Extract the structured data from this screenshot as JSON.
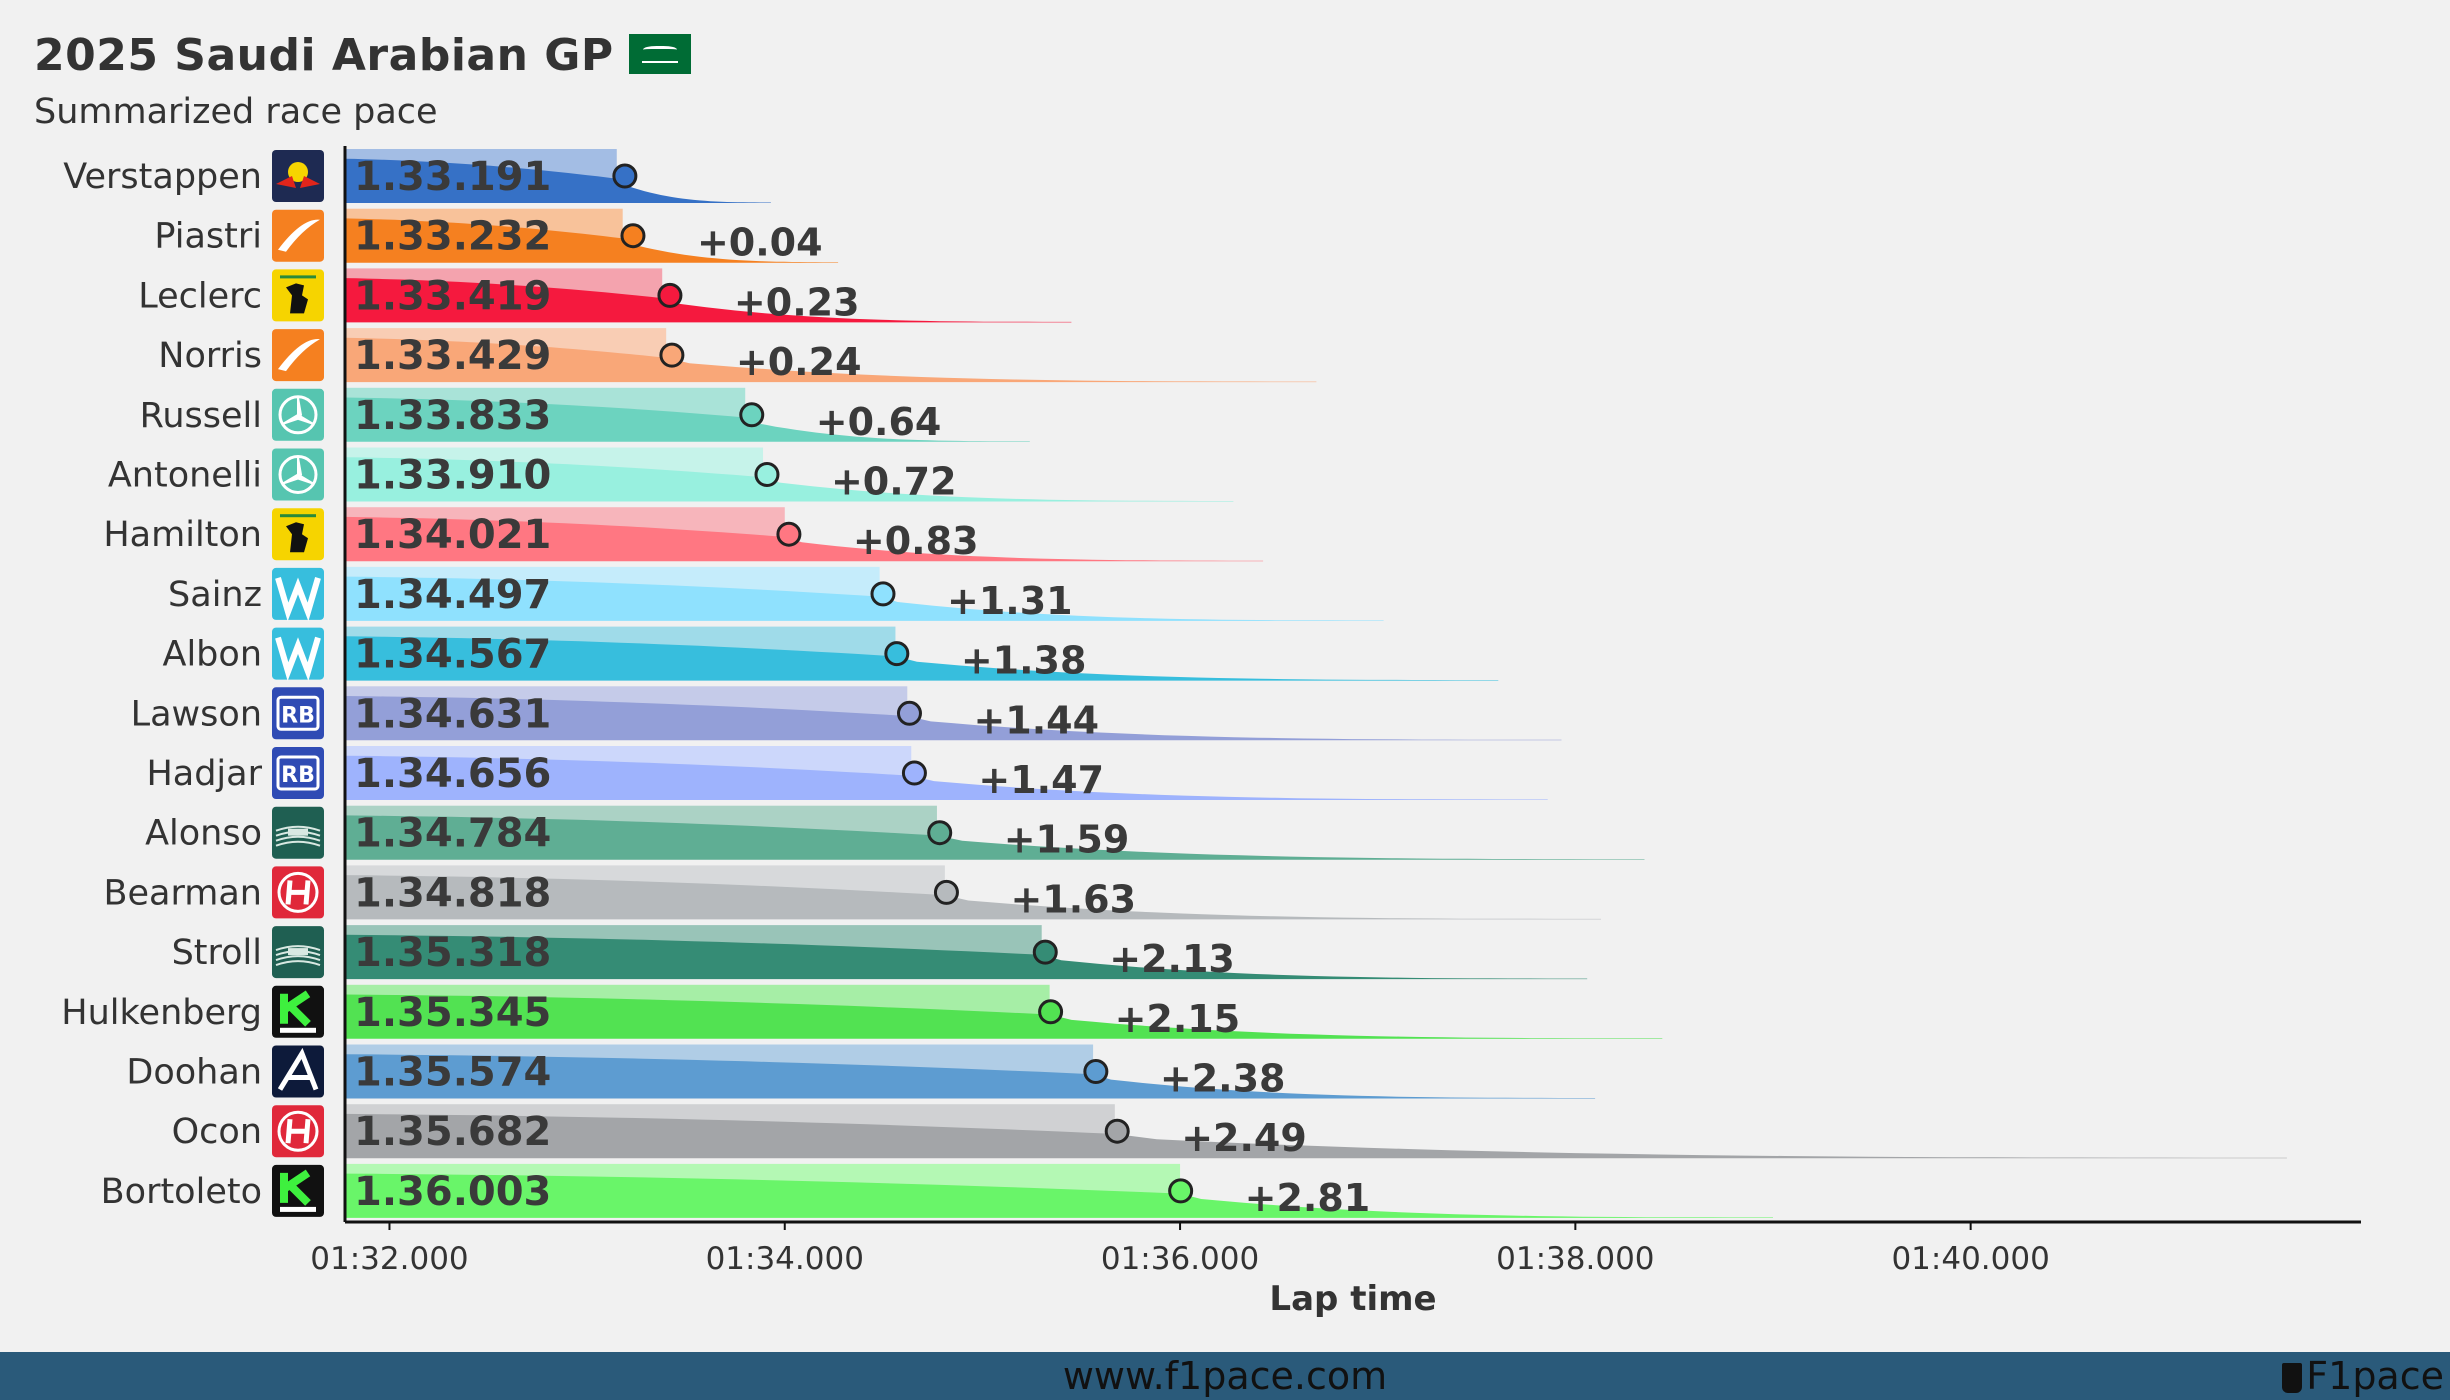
{
  "title": "2025 Saudi Arabian GP",
  "subtitle": "Summarized race pace",
  "footer": {
    "url": "www.f1pace.com",
    "brand": "F1pace"
  },
  "chart_data": {
    "type": "bar",
    "title": "2025 Saudi Arabian GP",
    "subtitle": "Summarized race pace",
    "xlabel": "Lap time",
    "ylabel": "",
    "x_unit": "seconds",
    "xlim": [
      91.775,
      101.975
    ],
    "x_ticks": [
      92,
      94,
      96,
      98,
      100
    ],
    "x_tick_labels": [
      "01:32.000",
      "01:34.000",
      "01:36.000",
      "01:38.000",
      "01:40.000"
    ],
    "grid": false,
    "legend": "none",
    "drivers": [
      {
        "name": "Verstappen",
        "team_icon": "red-bull-icon",
        "pace": 93.191,
        "pace_label": "1.33.191",
        "gap": "",
        "quartile": 93.15,
        "max": 93.93,
        "color": "#3671c6",
        "light": "#a3bde4"
      },
      {
        "name": "Piastri",
        "team_icon": "mclaren-icon",
        "pace": 93.232,
        "pace_label": "1.33.232",
        "gap": "+0.04",
        "quartile": 93.18,
        "max": 94.27,
        "color": "#f58020",
        "light": "#f8c29a"
      },
      {
        "name": "Leclerc",
        "team_icon": "ferrari-icon",
        "pace": 93.419,
        "pace_label": "1.33.419",
        "gap": "+0.23",
        "quartile": 93.38,
        "max": 95.45,
        "color": "#f5193e",
        "light": "#f4a3ae"
      },
      {
        "name": "Norris",
        "team_icon": "mclaren-icon",
        "pace": 93.429,
        "pace_label": "1.33.429",
        "gap": "+0.24",
        "quartile": 93.4,
        "max": 96.69,
        "color": "#f9a778",
        "light": "#f9cdb4"
      },
      {
        "name": "Russell",
        "team_icon": "mercedes-icon",
        "pace": 93.833,
        "pace_label": "1.33.833",
        "gap": "+0.64",
        "quartile": 93.8,
        "max": 95.24,
        "color": "#6cd3bf",
        "light": "#a9e3d8"
      },
      {
        "name": "Antonelli",
        "team_icon": "mercedes-icon",
        "pace": 93.91,
        "pace_label": "1.33.910",
        "gap": "+0.72",
        "quartile": 93.89,
        "max": 96.27,
        "color": "#98f0df",
        "light": "#c6f3ea"
      },
      {
        "name": "Hamilton",
        "team_icon": "ferrari-icon",
        "pace": 94.021,
        "pace_label": "1.34.021",
        "gap": "+0.83",
        "quartile": 94.0,
        "max": 96.42,
        "color": "#ff7782",
        "light": "#f7b5bb"
      },
      {
        "name": "Sainz",
        "team_icon": "williams-icon",
        "pace": 94.497,
        "pace_label": "1.34.497",
        "gap": "+1.31",
        "quartile": 94.48,
        "max": 97.03,
        "color": "#8fe1fe",
        "light": "#c5ecfb"
      },
      {
        "name": "Albon",
        "team_icon": "williams-icon",
        "pace": 94.567,
        "pace_label": "1.34.567",
        "gap": "+1.38",
        "quartile": 94.56,
        "max": 97.61,
        "color": "#37bedd",
        "light": "#9fdbe9"
      },
      {
        "name": "Lawson",
        "team_icon": "racing-bulls-icon",
        "pace": 94.631,
        "pace_label": "1.34.631",
        "gap": "+1.44",
        "quartile": 94.62,
        "max": 97.93,
        "color": "#939fd8",
        "light": "#c5cbe9"
      },
      {
        "name": "Hadjar",
        "team_icon": "racing-bulls-icon",
        "pace": 94.656,
        "pace_label": "1.34.656",
        "gap": "+1.47",
        "quartile": 94.64,
        "max": 97.86,
        "color": "#9eb3fd",
        "light": "#ccd7fb"
      },
      {
        "name": "Alonso",
        "team_icon": "aston-martin-icon",
        "pace": 94.784,
        "pace_label": "1.34.784",
        "gap": "+1.59",
        "quartile": 94.77,
        "max": 98.35,
        "color": "#5fae94",
        "light": "#abd2c5"
      },
      {
        "name": "Bearman",
        "team_icon": "haas-icon",
        "pace": 94.818,
        "pace_label": "1.34.818",
        "gap": "+1.63",
        "quartile": 94.81,
        "max": 98.13,
        "color": "#b6babd",
        "light": "#d7d9db"
      },
      {
        "name": "Stroll",
        "team_icon": "aston-martin-icon",
        "pace": 95.318,
        "pace_label": "1.35.318",
        "gap": "+2.13",
        "quartile": 95.3,
        "max": 98.06,
        "color": "#358c75",
        "light": "#99c4b8"
      },
      {
        "name": "Hulkenberg",
        "team_icon": "sauber-icon",
        "pace": 95.345,
        "pace_label": "1.35.345",
        "gap": "+2.15",
        "quartile": 95.34,
        "max": 98.44,
        "color": "#52e252",
        "light": "#a6eea6"
      },
      {
        "name": "Doohan",
        "team_icon": "alpine-icon",
        "pace": 95.574,
        "pace_label": "1.35.574",
        "gap": "+2.38",
        "quartile": 95.56,
        "max": 98.1,
        "color": "#5d9cd1",
        "light": "#b0cde6"
      },
      {
        "name": "Ocon",
        "team_icon": "haas-icon",
        "pace": 95.682,
        "pace_label": "1.35.682",
        "gap": "+2.49",
        "quartile": 95.67,
        "max": 101.6,
        "color": "#a3a5a8",
        "light": "#d0d1d3"
      },
      {
        "name": "Bortoleto",
        "team_icon": "sauber-icon",
        "pace": 96.003,
        "pace_label": "1.36.003",
        "gap": "+2.81",
        "quartile": 96.0,
        "max": 99.0,
        "color": "#69f569",
        "light": "#b4f8b4"
      }
    ]
  }
}
